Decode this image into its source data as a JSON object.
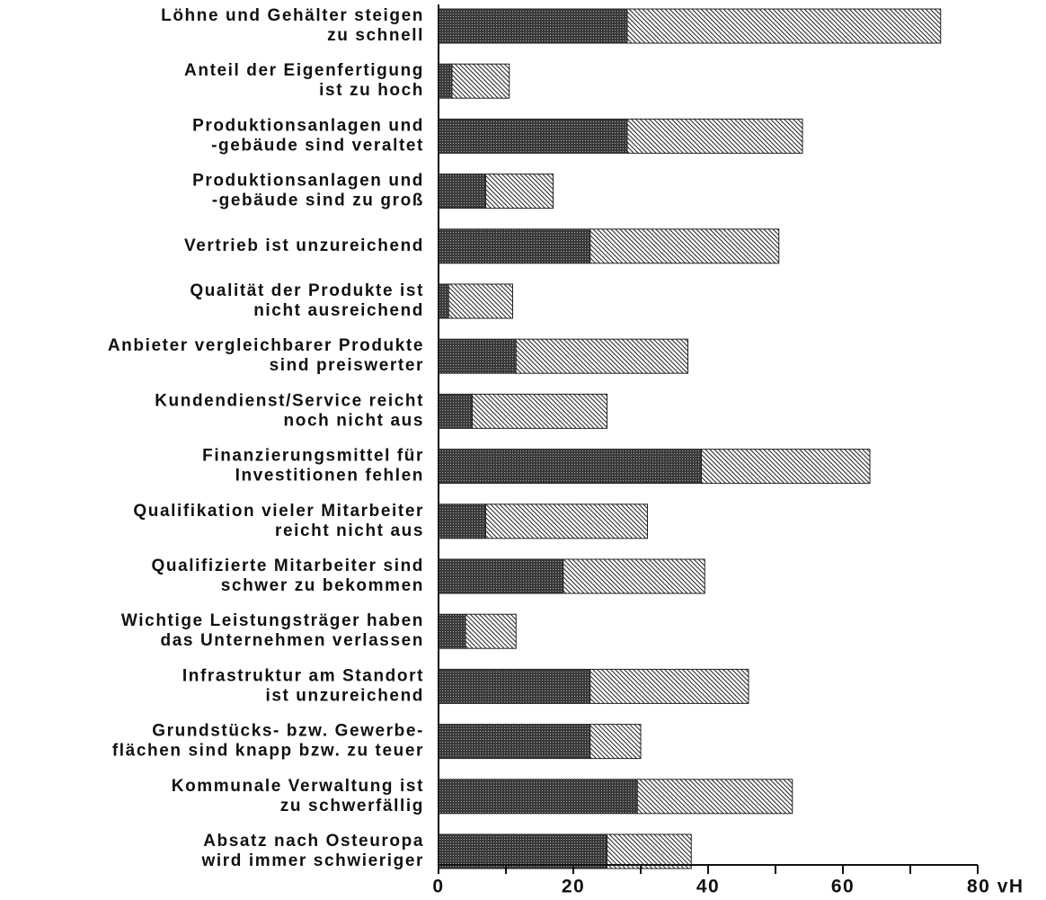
{
  "chart_data": {
    "type": "stacked-barh",
    "categories": [
      [
        "Löhne und Gehälter steigen",
        "zu schnell"
      ],
      [
        "Anteil der Eigenfertigung",
        "ist zu hoch"
      ],
      [
        "Produktionsanlagen und",
        "-gebäude sind veraltet"
      ],
      [
        "Produktionsanlagen und",
        "-gebäude sind zu groß"
      ],
      [
        "Vertrieb ist unzureichend"
      ],
      [
        "Qualität der Produkte ist",
        "nicht ausreichend"
      ],
      [
        "Anbieter vergleichbarer Produkte",
        "sind preiswerter"
      ],
      [
        "Kundendienst/Service reicht",
        "noch nicht aus"
      ],
      [
        "Finanzierungsmittel für",
        "Investitionen fehlen"
      ],
      [
        "Qualifikation vieler Mitarbeiter",
        "reicht nicht aus"
      ],
      [
        "Qualifizierte Mitarbeiter sind",
        "schwer zu bekommen"
      ],
      [
        "Wichtige Leistungsträger haben",
        "das Unternehmen verlassen"
      ],
      [
        "Infrastruktur am Standort",
        "ist unzureichend"
      ],
      [
        "Grundstücks- bzw. Gewerbe-",
        "flächen sind knapp bzw. zu teuer"
      ],
      [
        "Kommunale Verwaltung ist",
        "zu schwerfällig"
      ],
      [
        "Absatz nach Osteuropa",
        "wird immer schwieriger"
      ]
    ],
    "series": [
      {
        "color": "#3a3a3a",
        "pattern": "dots",
        "values": [
          28,
          2,
          28,
          7,
          22.5,
          1.5,
          11.5,
          5,
          39,
          7,
          18.5,
          4,
          22.5,
          22.5,
          29.5,
          25
        ]
      },
      {
        "color": "#2a2a2a",
        "pattern": "hatch",
        "values": [
          46.5,
          8.5,
          26,
          10,
          28,
          9.5,
          25.5,
          20,
          25,
          24,
          21,
          7.5,
          23.5,
          7.5,
          23,
          12.5
        ]
      }
    ],
    "xlim": [
      0,
      80
    ],
    "xticks": [
      0,
      20,
      40,
      60,
      {
        "value": 80,
        "label": "80 vH"
      }
    ],
    "xminorticks": [
      10,
      30,
      50,
      70
    ]
  }
}
